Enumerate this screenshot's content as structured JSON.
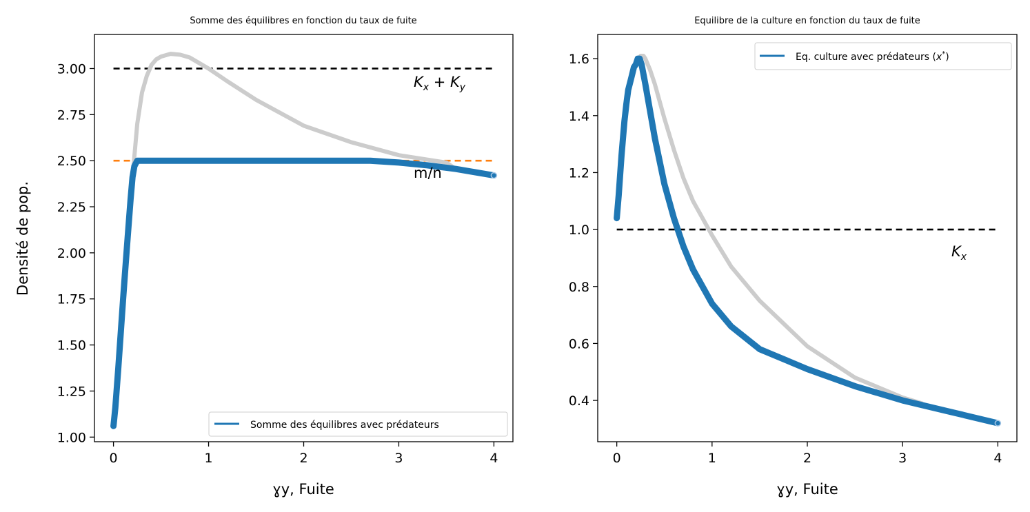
{
  "chart_data": [
    {
      "type": "line",
      "title": "Somme des équilibres en fonction du taux de fuite",
      "xlabel": "ɣy, Fuite",
      "ylabel": "Densité de pop.",
      "xlim": [
        -0.2,
        4.2
      ],
      "ylim": [
        0.975,
        3.185
      ],
      "xticks": [
        "0",
        "1",
        "2",
        "3",
        "4"
      ],
      "yticks": [
        "1.00",
        "1.25",
        "1.50",
        "1.75",
        "2.00",
        "2.25",
        "2.50",
        "2.75",
        "3.00"
      ],
      "grid": false,
      "legend": {
        "position": "lower-right",
        "entries": [
          "Somme des équilibres avec prédateurs"
        ]
      },
      "colors": {
        "main": "#1f77b4",
        "gray": "#cccccc",
        "orange": "#ff7f0e",
        "black": "#000000"
      },
      "series": [
        {
          "name": "Somme des équilibres avec prédateurs",
          "color": "#1f77b4",
          "x": [
            0,
            0.02,
            0.05,
            0.08,
            0.1,
            0.12,
            0.15,
            0.18,
            0.2,
            0.22,
            0.25,
            0.5,
            1.0,
            1.5,
            2.0,
            2.5,
            2.7,
            3.0,
            3.3,
            3.6,
            4.0
          ],
          "y": [
            1.06,
            1.16,
            1.37,
            1.59,
            1.74,
            1.88,
            2.09,
            2.29,
            2.41,
            2.47,
            2.5,
            2.5,
            2.5,
            2.5,
            2.5,
            2.5,
            2.5,
            2.49,
            2.475,
            2.455,
            2.42
          ]
        },
        {
          "color": "#cccccc",
          "x": [
            0.15,
            0.2,
            0.25,
            0.3,
            0.35,
            0.4,
            0.45,
            0.5,
            0.6,
            0.7,
            0.8,
            1.0,
            1.2,
            1.5,
            2.0,
            2.5,
            3.0,
            3.5,
            3.6
          ],
          "y": [
            2.09,
            2.41,
            2.7,
            2.87,
            2.96,
            3.02,
            3.05,
            3.065,
            3.08,
            3.075,
            3.06,
            3.0,
            2.93,
            2.83,
            2.69,
            2.6,
            2.53,
            2.49,
            2.455
          ]
        }
      ],
      "hlines": [
        {
          "y": 3.0,
          "xmin": 0,
          "xmax": 4,
          "color": "#000000",
          "label": "$K_x + K_y$"
        },
        {
          "y": 2.5,
          "xmin": 0,
          "xmax": 4,
          "color": "#ff7f0e",
          "label": "m/n"
        }
      ],
      "annotations": [
        {
          "text_main": "K",
          "sub1": "x",
          "plus": " + K",
          "sub2": "y",
          "x": 3.15,
          "y": 2.9
        },
        {
          "text": "m/n",
          "x": 3.15,
          "y": 2.4
        }
      ]
    },
    {
      "type": "line",
      "title": "Equilibre de la culture en fonction du taux de fuite",
      "xlabel": "ɣy, Fuite",
      "ylabel": "",
      "xlim": [
        -0.2,
        4.2
      ],
      "ylim": [
        0.255,
        1.685
      ],
      "xticks": [
        "0",
        "1",
        "2",
        "3",
        "4"
      ],
      "yticks": [
        "0.4",
        "0.6",
        "0.8",
        "1.0",
        "1.2",
        "1.4",
        "1.6"
      ],
      "grid": false,
      "legend": {
        "position": "upper-right",
        "entries": [
          "Eq. culture avec prédateurs (x*)"
        ],
        "entry_main": "Eq. culture avec prédateurs (",
        "entry_var": "x",
        "entry_sup": "*",
        "entry_close": ")"
      },
      "colors": {
        "main": "#1f77b4",
        "gray": "#cccccc",
        "black": "#000000"
      },
      "series": [
        {
          "name": "Eq. culture avec prédateurs (x*)",
          "color": "#1f77b4",
          "x": [
            0,
            0.02,
            0.05,
            0.08,
            0.1,
            0.12,
            0.15,
            0.18,
            0.2,
            0.22,
            0.24,
            0.26,
            0.3,
            0.4,
            0.5,
            0.6,
            0.7,
            0.8,
            1.0,
            1.2,
            1.5,
            2.0,
            2.5,
            3.0,
            3.5,
            4.0
          ],
          "y": [
            1.04,
            1.12,
            1.26,
            1.38,
            1.44,
            1.49,
            1.53,
            1.57,
            1.58,
            1.6,
            1.6,
            1.58,
            1.51,
            1.32,
            1.16,
            1.04,
            0.94,
            0.86,
            0.74,
            0.66,
            0.58,
            0.51,
            0.45,
            0.4,
            0.36,
            0.32
          ]
        },
        {
          "color": "#cccccc",
          "x": [
            0.15,
            0.2,
            0.25,
            0.28,
            0.3,
            0.35,
            0.4,
            0.5,
            0.6,
            0.7,
            0.8,
            1.0,
            1.2,
            1.5,
            2.0,
            2.5,
            3.0,
            3.2
          ],
          "y": [
            1.53,
            1.58,
            1.61,
            1.61,
            1.6,
            1.56,
            1.51,
            1.39,
            1.28,
            1.18,
            1.1,
            0.98,
            0.87,
            0.75,
            0.59,
            0.48,
            0.41,
            0.39
          ]
        }
      ],
      "hlines": [
        {
          "y": 1.0,
          "xmin": 0,
          "xmax": 4,
          "color": "#000000",
          "label": "$K_x$"
        }
      ],
      "annotations": [
        {
          "text_main": "K",
          "sub1": "x",
          "x": 3.5,
          "y": 0.9
        }
      ]
    }
  ]
}
